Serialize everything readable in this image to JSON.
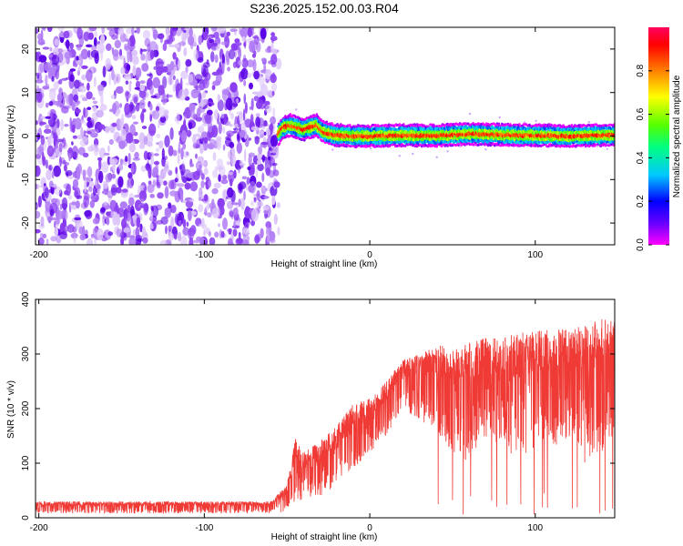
{
  "title": "S236.2025.152.00.03.R04",
  "colors": {
    "spectrum_background_noise": "#8a3cf0",
    "snr_line": "#ef3a35",
    "colorbar": [
      "#ff00ff",
      "#6600ff",
      "#0000ff",
      "#00c8ff",
      "#00ff80",
      "#55ff00",
      "#ffff00",
      "#ff8000",
      "#ff0000",
      "#ff0060"
    ]
  },
  "chart_data": [
    {
      "type": "heatmap",
      "xlabel": "Height of straight line (km)",
      "ylabel": "Frequency (Hz)",
      "xlim": [
        -202,
        148
      ],
      "ylim": [
        -25,
        25
      ],
      "x_ticks": [
        -200,
        -100,
        0,
        100
      ],
      "x_tick_labels": [
        "-200",
        "-100",
        "0",
        "100"
      ],
      "y_ticks": [
        -20,
        -10,
        0,
        10,
        20
      ],
      "y_tick_labels": [
        "-20",
        "-10",
        "0",
        "10",
        "20"
      ],
      "colorbar": {
        "label": "Normalized spectral amplitude",
        "range": [
          0,
          1
        ],
        "ticks": [
          0.0,
          0.2,
          0.4,
          0.6,
          0.8
        ],
        "tick_labels": [
          "0.0",
          "0.2",
          "0.4",
          "0.6",
          "0.8"
        ]
      },
      "noise_region_x": [
        -202,
        -55
      ],
      "signal_start_x": -55,
      "signal_trace": {
        "x": [
          -55,
          -52,
          -48,
          -44,
          -40,
          -36,
          -32,
          -28,
          -24,
          -20,
          -10,
          0,
          20,
          40,
          60,
          80,
          100,
          120,
          148
        ],
        "y": [
          0.5,
          2.0,
          2.5,
          2.0,
          1.5,
          2.0,
          2.5,
          1.0,
          0.5,
          0.2,
          0.0,
          0.0,
          0.2,
          0.1,
          0.5,
          0.3,
          0.2,
          0.0,
          0.3
        ]
      }
    },
    {
      "type": "line",
      "xlabel": "Height of straight line (km)",
      "ylabel": "SNR (10 * v/v)",
      "xlim": [
        -202,
        148
      ],
      "ylim": [
        0,
        400
      ],
      "x_ticks": [
        -200,
        -100,
        0,
        100
      ],
      "x_tick_labels": [
        "-200",
        "-100",
        "0",
        "100"
      ],
      "y_ticks": [
        0,
        100,
        200,
        300,
        400
      ],
      "y_tick_labels": [
        "0",
        "100",
        "200",
        "300",
        "400"
      ],
      "series": [
        {
          "x": [
            -202,
            -180,
            -160,
            -140,
            -120,
            -100,
            -80,
            -60,
            -50,
            -45,
            -40,
            -30,
            -20,
            -10,
            0,
            10,
            20,
            30,
            40,
            50,
            60,
            70,
            80,
            90,
            100,
            110,
            120,
            130,
            140,
            148
          ],
          "upper": [
            30,
            30,
            30,
            30,
            30,
            30,
            30,
            30,
            60,
            150,
            120,
            140,
            170,
            210,
            220,
            250,
            290,
            300,
            320,
            310,
            320,
            330,
            330,
            340,
            340,
            350,
            350,
            355,
            365,
            360
          ],
          "lower": [
            8,
            8,
            8,
            8,
            8,
            8,
            8,
            8,
            10,
            20,
            30,
            40,
            60,
            90,
            120,
            150,
            200,
            180,
            160,
            120,
            100,
            150,
            120,
            100,
            130,
            120,
            150,
            100,
            120,
            140
          ]
        }
      ]
    }
  ]
}
